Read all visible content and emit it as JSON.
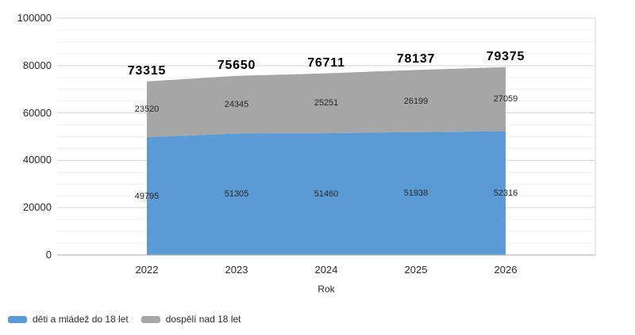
{
  "chart_data": {
    "type": "area",
    "stacked": true,
    "title": "",
    "x": [
      2022,
      2023,
      2024,
      2025,
      2026
    ],
    "xlabel": "Rok",
    "ylabel": "",
    "xlim": [
      2021,
      2027
    ],
    "ylim": [
      0,
      100000
    ],
    "ytick_major_step": 20000,
    "ytick_minor_step": 5000,
    "grid": true,
    "legend_position": "bottom-left",
    "series": [
      {
        "name": "děti a mládež do 18 let",
        "color": "#5b9bd5",
        "values": [
          49795,
          51305,
          51460,
          51938,
          52316
        ]
      },
      {
        "name": "dospělí nad 18 let",
        "color": "#a6a6a6",
        "values": [
          23520,
          24345,
          25251,
          26199,
          27059
        ]
      }
    ],
    "totals": [
      73315,
      75650,
      76711,
      78137,
      79375
    ]
  },
  "colors": {
    "background": "#ffffff",
    "grid_minor": "#efefef",
    "grid_major": "#d6d6d6",
    "axis_zero_line": "#a8a8a8",
    "plot_right_border": "#d9d9d9",
    "total_label": "#000000",
    "value_label": "#262626",
    "tick_label": "#2b2b2b"
  }
}
